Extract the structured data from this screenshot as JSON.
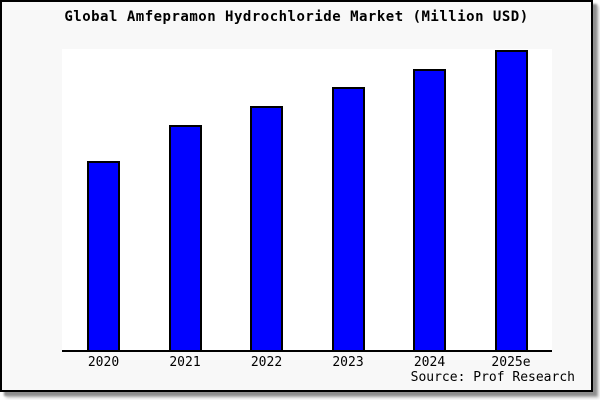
{
  "title": "Global Amfepramon Hydrochloride Market (Million USD)",
  "source": "Source: Prof Research",
  "colors": {
    "bar_fill": "#0000ff",
    "bar_border": "#000000",
    "canvas_background": "#f8f8f8",
    "plot_background": "#ffffff",
    "axis_line": "#000000",
    "frame_border": "#000000",
    "shadow": "#8f8f8f"
  },
  "chart_data": {
    "type": "bar",
    "title": "Global Amfepramon Hydrochloride Market (Million USD)",
    "categories": [
      "2020",
      "2021",
      "2022",
      "2023",
      "2024",
      "2025e"
    ],
    "values": [
      63,
      75,
      81.3,
      87.7,
      93.7,
      100
    ],
    "value_note": "y-axis is unlabeled in the image; values are relative bar heights normalized so 2025e = 100",
    "xlabel": "",
    "ylabel": "",
    "ylim": [
      0,
      100
    ],
    "grid": false,
    "legend": "none",
    "annotations": [
      "Source: Prof Research"
    ]
  }
}
